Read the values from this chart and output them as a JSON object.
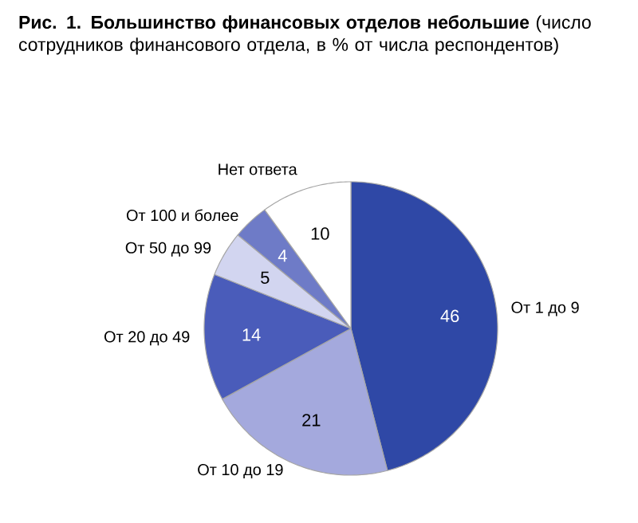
{
  "chart_data": {
    "type": "pie",
    "title": "**Рис. 1. Большинство финансовых отделов небольшие** (число сотрудников финансового отдела, в % от числа респондентов)",
    "categories": [
      "От 1 до 9",
      "От 10 до 19",
      "От 20 до 49",
      "От 50 до 99",
      "От 100 и более",
      "Нет ответа"
    ],
    "values": [
      46,
      21,
      14,
      5,
      4,
      10
    ],
    "colors": [
      "#2f48a6",
      "#a4a9dd",
      "#4a5cba",
      "#d2d5f0",
      "#6e7bc7",
      "#ffffff"
    ],
    "data_labels": true
  }
}
